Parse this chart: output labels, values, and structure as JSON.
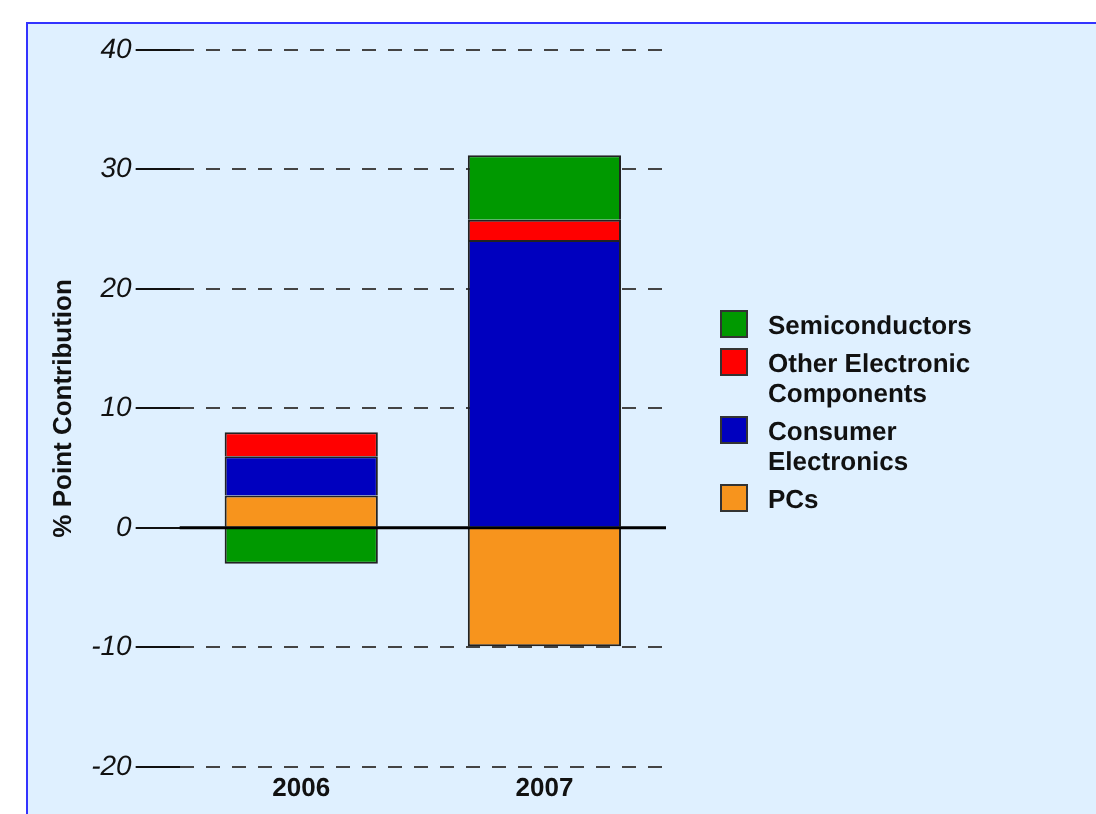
{
  "chart_data": {
    "type": "bar",
    "stacked": true,
    "ylabel": "% Point Contribution",
    "categories": [
      "2006",
      "2007"
    ],
    "series": [
      {
        "name": "PCs",
        "color": "#f7941d",
        "values": [
          2.7,
          -9.9
        ]
      },
      {
        "name": "Consumer Electronics",
        "color": "#0000bf",
        "values": [
          3.3,
          24.1
        ]
      },
      {
        "name": "Other Electronic Components",
        "color": "#ff0000",
        "values": [
          2.0,
          1.7
        ]
      },
      {
        "name": "Semiconductors",
        "color": "#009900",
        "values": [
          -3.0,
          5.4
        ]
      }
    ],
    "ylim": [
      -20,
      40
    ],
    "yticks": [
      -20,
      -10,
      0,
      10,
      20,
      30,
      40
    ],
    "grid": "y",
    "legend": "right"
  }
}
